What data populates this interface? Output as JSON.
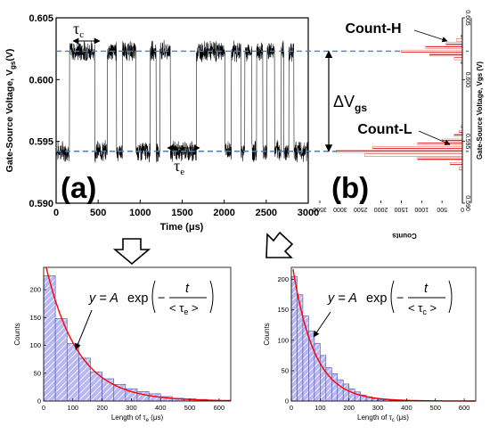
{
  "chart_data": [
    {
      "id": "a",
      "type": "line",
      "panel_label": "(a)",
      "xlabel": "Time (μs)",
      "ylabel": "Gate-Source Voltage, V",
      "ylabel_sub": "gs",
      "ylabel_unit": "(V)",
      "xlim": [
        0,
        3000
      ],
      "ylim": [
        0.59,
        0.605
      ],
      "xticks": [
        0,
        500,
        1000,
        1500,
        2000,
        2500,
        3000
      ],
      "yticks": [
        "0.590",
        "0.595",
        "0.600",
        "0.605"
      ],
      "levels": {
        "high": 0.6023,
        "low": 0.5942
      },
      "high_segments": [
        [
          160,
          460
        ],
        [
          610,
          720
        ],
        [
          790,
          950
        ],
        [
          1120,
          1190
        ],
        [
          1235,
          1360
        ],
        [
          1670,
          2010
        ],
        [
          2085,
          2200
        ],
        [
          2245,
          2330
        ],
        [
          2385,
          2460
        ],
        [
          2510,
          2600
        ],
        [
          2680,
          2710
        ],
        [
          2770,
          2830
        ]
      ],
      "annotations": {
        "tau_c": "τ",
        "tau_c_sub": "c",
        "tau_e": "τ",
        "tau_e_sub": "e",
        "delta": "ΔV",
        "delta_sub": "gs"
      }
    },
    {
      "id": "b",
      "type": "bar",
      "orientation": "horizontal",
      "panel_label": "(b)",
      "xlabel": "Counts",
      "ylabel": "Gate-Source Voltage, Vgs (V)",
      "xlim": [
        3500,
        0
      ],
      "ylim": [
        0.59,
        0.605
      ],
      "xticks": [
        3500,
        3000,
        2500,
        2000,
        1500,
        1000,
        500,
        0
      ],
      "yticks": [
        "0.590",
        "0.595",
        "0.600",
        "0.605"
      ],
      "voltages": [
        0.5928,
        0.5932,
        0.5936,
        0.5939,
        0.5942,
        0.5945,
        0.5948,
        0.5951,
        0.5955,
        0.5958,
        0.5962,
        0.6014,
        0.6017,
        0.602,
        0.6023,
        0.6026,
        0.6029,
        0.6032,
        0.6035
      ],
      "counts": [
        80,
        300,
        1100,
        2400,
        3100,
        2200,
        1100,
        500,
        200,
        80,
        30,
        40,
        200,
        800,
        1500,
        900,
        400,
        150,
        40
      ],
      "labels": {
        "high": "Count-H",
        "low": "Count-L"
      }
    },
    {
      "id": "c",
      "type": "bar",
      "xlabel": "Length of τ",
      "xlabel_sub": "e",
      "xlabel_unit": " (μs)",
      "ylabel": "Counts",
      "xlim": [
        0,
        640
      ],
      "ylim": [
        0,
        240
      ],
      "xticks": [
        0,
        100,
        200,
        300,
        400,
        500,
        600
      ],
      "yticks": [
        0,
        50,
        100,
        150,
        200
      ],
      "bin_width": 40,
      "bin_starts": [
        0,
        40,
        80,
        120,
        160,
        200,
        240,
        280,
        320,
        360,
        400,
        440,
        480,
        520,
        560,
        600
      ],
      "values": [
        225,
        148,
        103,
        77,
        52,
        40,
        30,
        22,
        17,
        13,
        8,
        5,
        4,
        3,
        1,
        1
      ],
      "fit": {
        "A": 260,
        "tau": 110
      }
    },
    {
      "id": "d",
      "type": "bar",
      "xlabel": "Length of τ",
      "xlabel_sub": "c",
      "xlabel_unit": " (μs)",
      "ylabel": "Counts",
      "xlim": [
        0,
        640
      ],
      "ylim": [
        0,
        220
      ],
      "xticks": [
        0,
        100,
        200,
        300,
        400,
        500,
        600
      ],
      "yticks": [
        0,
        50,
        100,
        150,
        200
      ],
      "bin_width": 20,
      "bin_starts": [
        0,
        20,
        40,
        60,
        80,
        100,
        120,
        140,
        160,
        180,
        200,
        220,
        240,
        260,
        280,
        300,
        320,
        340,
        360,
        380
      ],
      "values": [
        205,
        175,
        140,
        115,
        95,
        75,
        55,
        45,
        35,
        28,
        20,
        15,
        10,
        7,
        4,
        2,
        2,
        1,
        1,
        1
      ],
      "fit": {
        "A": 235,
        "tau": 75
      }
    }
  ],
  "equations": {
    "c": {
      "lhs": "y = A",
      "fn": "exp",
      "num": "t",
      "den_l": "< τ",
      "den_sub": "e",
      "den_r": " >"
    },
    "d": {
      "lhs": "y = A",
      "fn": "exp",
      "num": "t",
      "den_l": "< τ",
      "den_sub": "c",
      "den_r": " >"
    }
  }
}
